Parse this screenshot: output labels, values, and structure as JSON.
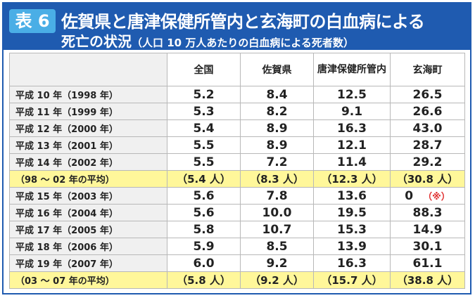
{
  "header": {
    "badge": "表 6",
    "title_line1": "佐賀県と唐津保健所管内と玄海町の白血病による",
    "title_line2_main": "死亡の状況",
    "title_line2_sub": "（人口 10 万人あたりの白血病による死者数）"
  },
  "table": {
    "columns": [
      "全国",
      "佐賀県",
      "唐津保健所管内",
      "玄海町"
    ],
    "rows": [
      {
        "label": "平成 10 年（1998 年）",
        "values": [
          "5.2",
          "8.4",
          "12.5",
          "26.5"
        ]
      },
      {
        "label": "平成 11 年（1999 年）",
        "values": [
          "5.3",
          "8.2",
          "9.1",
          "26.6"
        ]
      },
      {
        "label": "平成 12 年（2000 年）",
        "values": [
          "5.4",
          "8.9",
          "16.3",
          "43.0"
        ]
      },
      {
        "label": "平成 13 年（2001 年）",
        "values": [
          "5.5",
          "8.9",
          "12.1",
          "28.7"
        ]
      },
      {
        "label": "平成 14 年（2002 年）",
        "values": [
          "5.5",
          "7.2",
          "11.4",
          "29.2"
        ]
      },
      {
        "label": "（98 ～ 02 年の平均）",
        "values": [
          "（5.4 人）",
          "（8.3 人）",
          "（12.3 人）",
          "（30.8 人）"
        ],
        "avg": true
      },
      {
        "label": "平成 15 年（2003 年）",
        "values": [
          "5.6",
          "7.8",
          "13.6",
          "0"
        ],
        "note": "（※）"
      },
      {
        "label": "平成 16 年（2004 年）",
        "values": [
          "5.6",
          "10.0",
          "19.5",
          "88.3"
        ]
      },
      {
        "label": "平成 17 年（2005 年）",
        "values": [
          "5.8",
          "10.7",
          "15.3",
          "14.9"
        ]
      },
      {
        "label": "平成 18 年（2006 年）",
        "values": [
          "5.9",
          "8.5",
          "13.9",
          "30.1"
        ]
      },
      {
        "label": "平成 19 年（2007 年）",
        "values": [
          "6.0",
          "9.2",
          "16.3",
          "61.1"
        ]
      },
      {
        "label": "（03 ～ 07 年の平均）",
        "values": [
          "（5.8 人）",
          "（9.2 人）",
          "（15.7 人）",
          "（38.8 人）"
        ],
        "avg": true
      }
    ]
  },
  "colors": {
    "header_blue": "#1f5bb0",
    "badge_blue": "#4aaee6",
    "avg_row_yellow": "#fff79a",
    "note_red": "#e03030"
  }
}
